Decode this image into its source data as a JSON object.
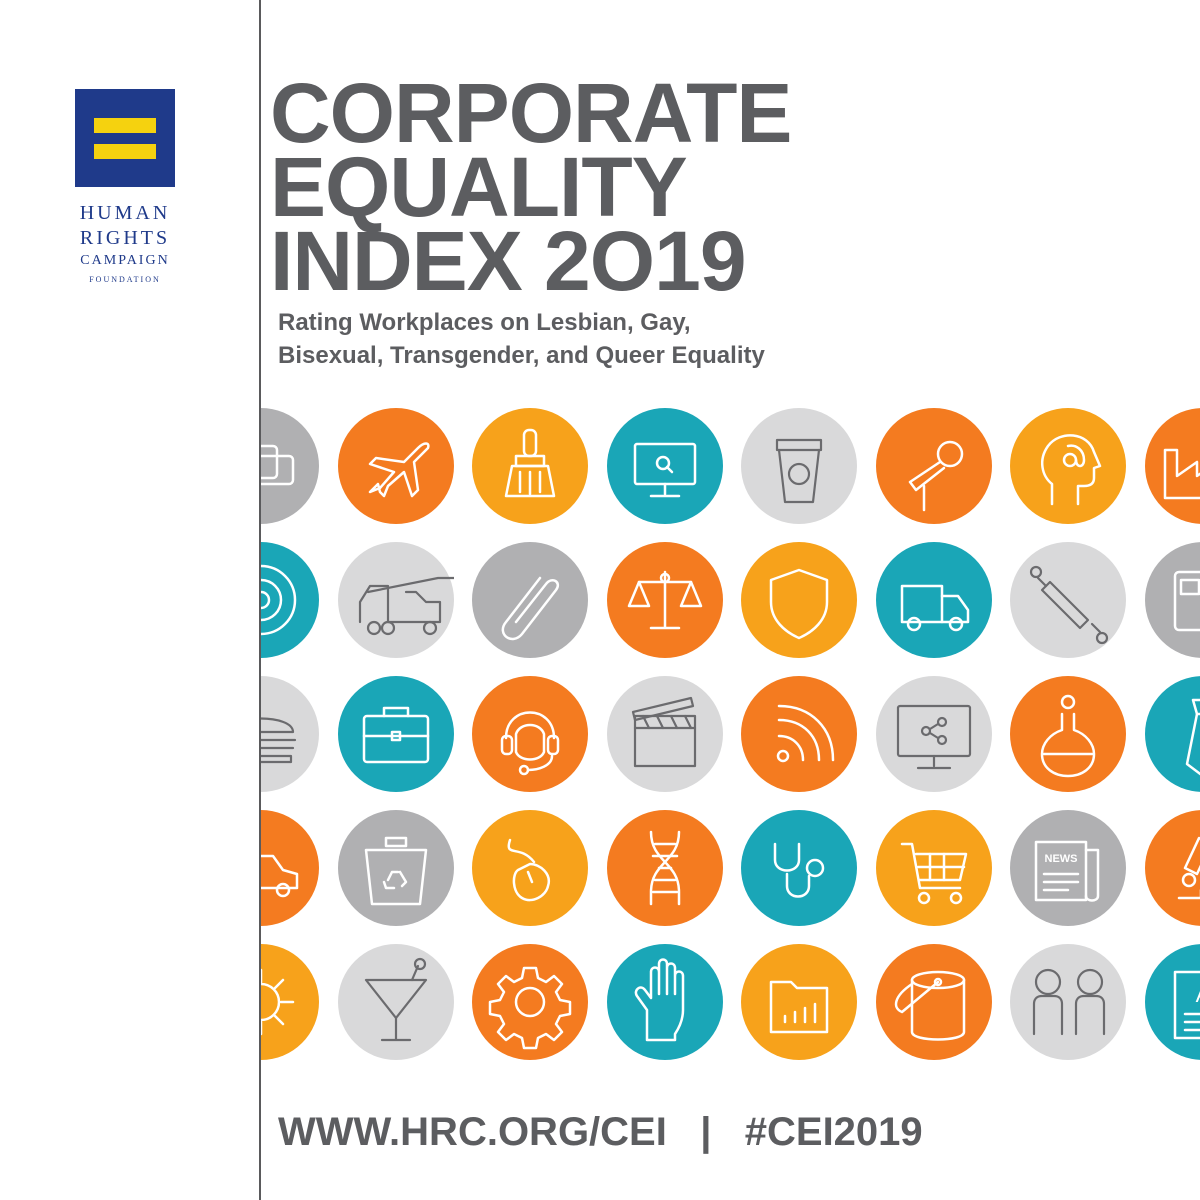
{
  "org": {
    "line1": "HUMAN",
    "line2": "RIGHTS",
    "line3": "CAMPAIGN",
    "line4": "FOUNDATION"
  },
  "title": {
    "line1": "CORPORATE",
    "line2": "EQUALITY",
    "line3": "INDEX 2O19"
  },
  "subtitle": {
    "line1": "Rating Workplaces on Lesbian, Gay,",
    "line2": "Bisexual, Transgender, and Queer Equality"
  },
  "footer": {
    "url": "WWW.HRC.ORG/CEI",
    "separator": "|",
    "hashtag": "#CEI2019"
  },
  "colors": {
    "orange": "#f47b20",
    "amber": "#f7a21b",
    "teal": "#1aa6b7",
    "lightgray": "#d9d9da",
    "gray": "#b0b0b2",
    "logo_blue": "#1f3a8a",
    "logo_yellow": "#f5d20f",
    "text_gray": "#5c5d60"
  },
  "icon_grid": [
    [
      {
        "icon": "speech-bubbles-icon",
        "color": "gray"
      },
      {
        "icon": "airplane-icon",
        "color": "orange"
      },
      {
        "icon": "broom-icon",
        "color": "amber"
      },
      {
        "icon": "monitor-search-icon",
        "color": "teal"
      },
      {
        "icon": "coffee-cup-icon",
        "color": "lightgray"
      },
      {
        "icon": "microphone-icon",
        "color": "orange"
      },
      {
        "icon": "head-at-icon",
        "color": "amber"
      },
      {
        "icon": "factory-icon",
        "color": "orange"
      }
    ],
    [
      {
        "icon": "gears-icon",
        "color": "teal"
      },
      {
        "icon": "crane-truck-icon",
        "color": "lightgray"
      },
      {
        "icon": "paperclip-icon",
        "color": "gray"
      },
      {
        "icon": "scales-icon",
        "color": "orange"
      },
      {
        "icon": "shield-icon",
        "color": "amber"
      },
      {
        "icon": "delivery-truck-icon",
        "color": "teal"
      },
      {
        "icon": "rolling-pin-icon",
        "color": "lightgray"
      },
      {
        "icon": "fuel-pump-icon",
        "color": "gray"
      }
    ],
    [
      {
        "icon": "burger-icon",
        "color": "lightgray"
      },
      {
        "icon": "briefcase-icon",
        "color": "teal"
      },
      {
        "icon": "headset-icon",
        "color": "orange"
      },
      {
        "icon": "clapperboard-icon",
        "color": "lightgray"
      },
      {
        "icon": "rss-icon",
        "color": "orange"
      },
      {
        "icon": "monitor-share-icon",
        "color": "lightgray"
      },
      {
        "icon": "flask-icon",
        "color": "orange"
      },
      {
        "icon": "tie-icon",
        "color": "teal"
      }
    ],
    [
      {
        "icon": "car-icon",
        "color": "orange"
      },
      {
        "icon": "recycle-bin-icon",
        "color": "gray"
      },
      {
        "icon": "mouse-icon",
        "color": "amber"
      },
      {
        "icon": "dna-icon",
        "color": "orange"
      },
      {
        "icon": "stethoscope-icon",
        "color": "teal"
      },
      {
        "icon": "shopping-cart-icon",
        "color": "amber"
      },
      {
        "icon": "newspaper-icon",
        "color": "gray",
        "label": "NEWS"
      },
      {
        "icon": "microscope-icon",
        "color": "orange"
      }
    ],
    [
      {
        "icon": "sun-icon",
        "color": "amber"
      },
      {
        "icon": "martini-icon",
        "color": "lightgray"
      },
      {
        "icon": "gear-icon",
        "color": "orange"
      },
      {
        "icon": "glove-icon",
        "color": "teal"
      },
      {
        "icon": "folder-chart-icon",
        "color": "amber"
      },
      {
        "icon": "paint-bucket-icon",
        "color": "orange"
      },
      {
        "icon": "people-icon",
        "color": "lightgray"
      },
      {
        "icon": "document-icon",
        "color": "teal",
        "label": "A"
      }
    ]
  ]
}
